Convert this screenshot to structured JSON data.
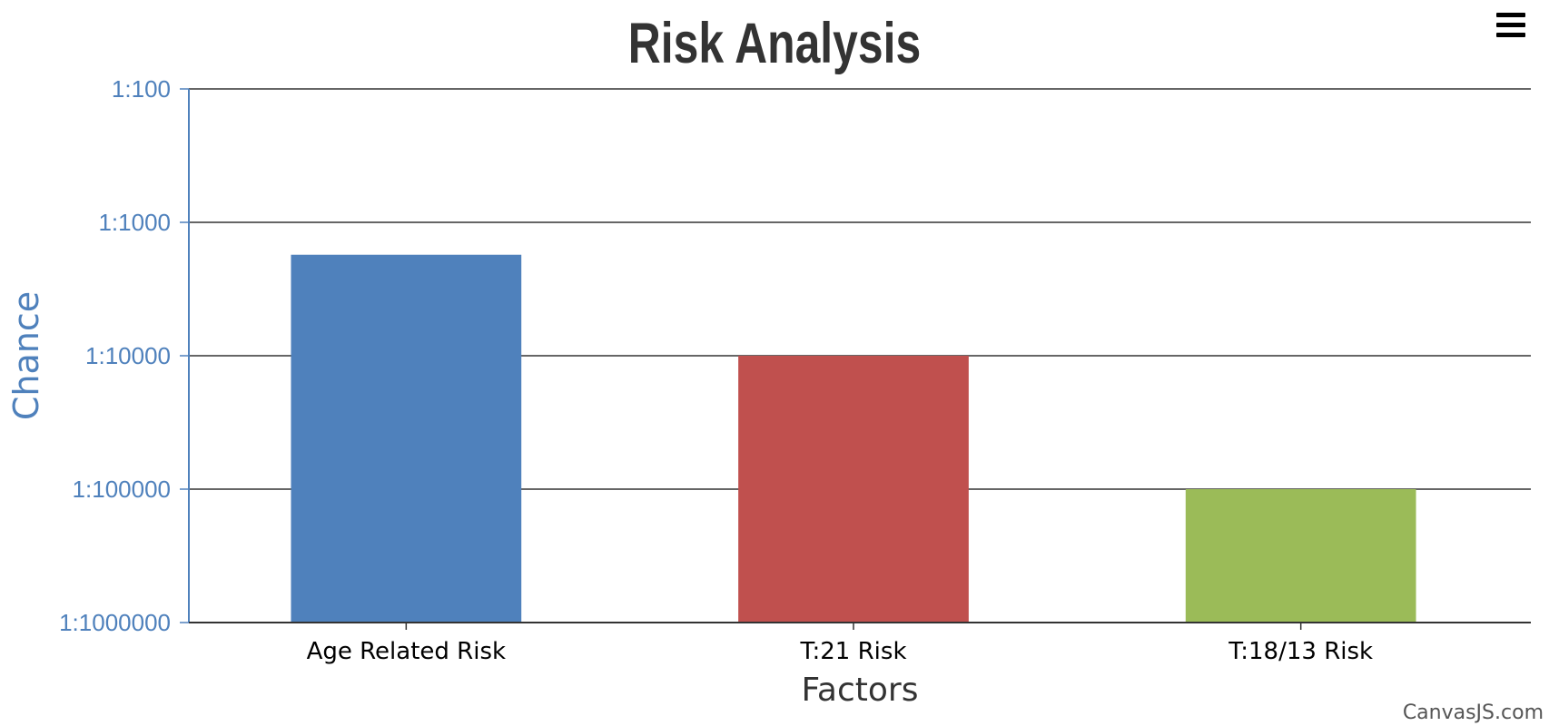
{
  "chart_data": {
    "type": "bar",
    "title": "Risk Analysis",
    "xlabel": "Factors",
    "ylabel": "Chance",
    "categories": [
      "Age Related Risk",
      "T:21 Risk",
      "T:18/13 Risk"
    ],
    "values": [
      1750,
      10000,
      100000
    ],
    "value_display": "1:N (chance of one in N)",
    "bar_colors": [
      "#4F81BC",
      "#C0504E",
      "#9BBB58"
    ],
    "y_scale": "log",
    "y_axis_reversed": true,
    "ylim": [
      100,
      1000000
    ],
    "y_ticks": [
      100,
      1000,
      10000,
      100000,
      1000000
    ],
    "y_tick_labels": [
      "1:100",
      "1:1000",
      "1:10000",
      "1:100000",
      "1:1000000"
    ],
    "grid": true,
    "legend": "none"
  },
  "colors": {
    "title": "#333333",
    "axis_y_labels": "#4F81BC",
    "axis_x_labels": "#000000",
    "gridline": "#333333",
    "axis_line": "#4F81BC"
  },
  "credit": {
    "label": "CanvasJS.com"
  },
  "menu": {
    "icon": "hamburger-menu-icon"
  }
}
